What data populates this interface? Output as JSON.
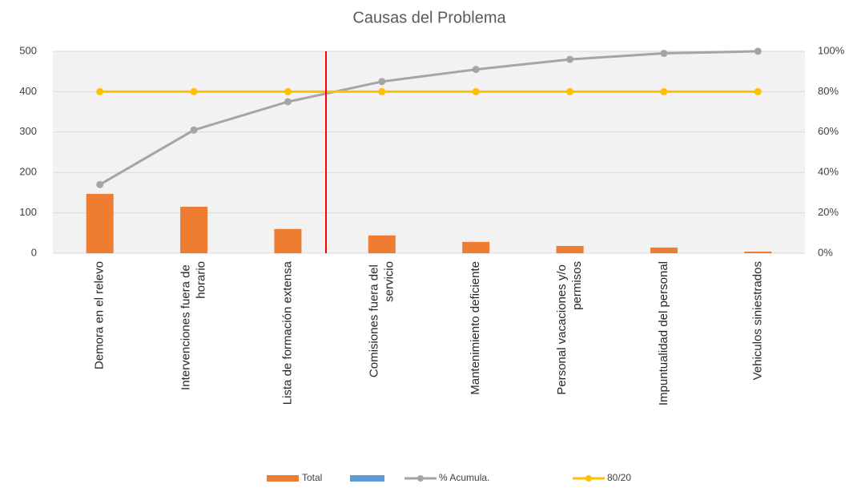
{
  "chart_data": {
    "type": "pareto",
    "title": "Causas del Problema",
    "categories": [
      "Demora en el relevo",
      "Intervenciones fuera de horario",
      "Lista de formación extensa",
      "Comisiones fuera del servicio",
      "Mantenimiento deficiente",
      "Personal vacaciones y/o permisos",
      "Impuntualidad del personal",
      "Vehiculos siniestrados"
    ],
    "series": [
      {
        "name": "Total",
        "type": "bar",
        "color": "#ed7d31",
        "values": [
          147,
          115,
          60,
          44,
          28,
          18,
          14,
          4
        ]
      },
      {
        "name": "% Acumula.",
        "type": "line",
        "axis": "y2",
        "color": "#a5a5a5",
        "values": [
          34,
          61,
          75,
          85,
          91,
          96,
          99,
          100
        ]
      },
      {
        "name": "80/20",
        "type": "line",
        "axis": "y2",
        "color": "#ffc000",
        "values": [
          80,
          80,
          80,
          80,
          80,
          80,
          80,
          80
        ]
      }
    ],
    "ylim": [
      0,
      500
    ],
    "yticks": [
      0,
      100,
      200,
      300,
      400,
      500
    ],
    "y2lim": [
      0,
      100
    ],
    "y2ticks": [
      {
        "value": 0,
        "label": "0%"
      },
      {
        "value": 20,
        "label": "20%"
      },
      {
        "value": 40,
        "label": "40%"
      },
      {
        "value": 60,
        "label": "60%"
      },
      {
        "value": 80,
        "label": "80%"
      },
      {
        "value": 100,
        "label": "100%"
      }
    ],
    "grid": true
  }
}
